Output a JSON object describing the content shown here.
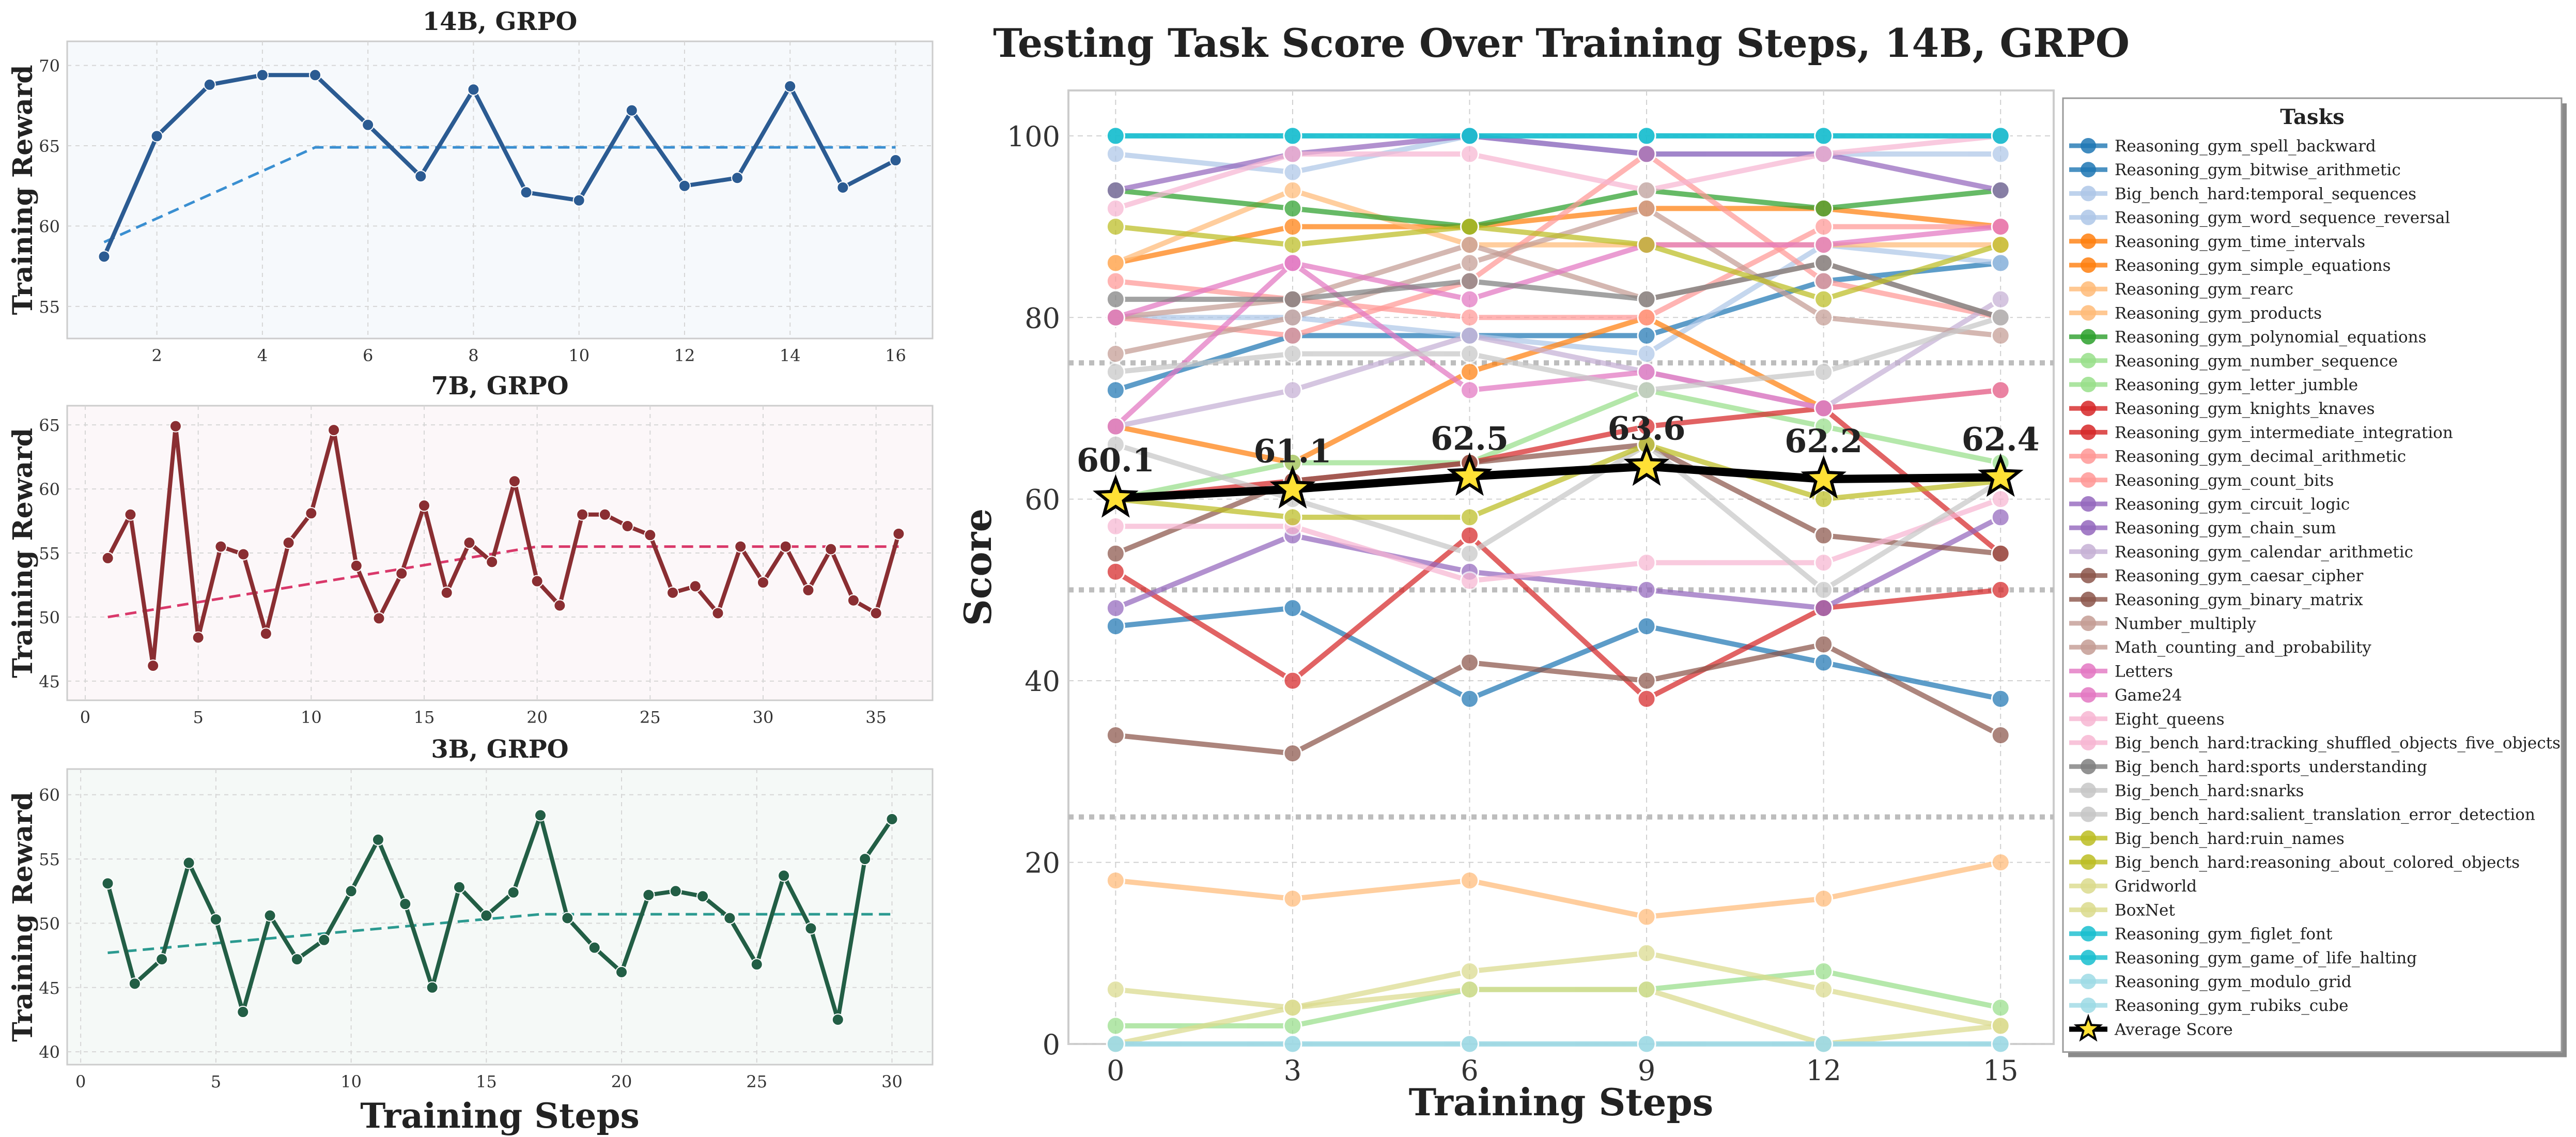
{
  "chart_data": [
    {
      "type": "line",
      "title": "14B, GRPO",
      "xlabel": "",
      "ylabel": "Training Reward",
      "xlim": [
        0.3,
        16.7
      ],
      "ylim": [
        53,
        71.5
      ],
      "xticks": [
        2,
        4,
        6,
        8,
        10,
        12,
        14,
        16
      ],
      "yticks": [
        55,
        60,
        65,
        70
      ],
      "grid": true,
      "x": [
        1,
        2,
        3,
        4,
        5,
        6,
        7,
        8,
        9,
        10,
        11,
        12,
        13,
        14,
        15,
        16
      ],
      "series": [
        {
          "role": "reward",
          "color": "#2b5b92",
          "values": [
            58.1,
            65.6,
            68.8,
            69.4,
            69.4,
            66.3,
            63.1,
            68.5,
            62.1,
            61.6,
            67.2,
            62.5,
            63.0,
            68.7,
            62.4,
            64.1
          ]
        },
        {
          "role": "trend",
          "color": "#3a8fd1",
          "dashed": true,
          "values": [
            59.0,
            null,
            null,
            null,
            64.9,
            null,
            null,
            null,
            null,
            null,
            null,
            null,
            null,
            null,
            null,
            64.9
          ]
        }
      ]
    },
    {
      "type": "line",
      "title": "7B, GRPO",
      "xlabel": "",
      "ylabel": "Training Reward",
      "xlim": [
        -0.8,
        37.5
      ],
      "ylim": [
        43.5,
        66.5
      ],
      "xticks": [
        0,
        5,
        10,
        15,
        20,
        25,
        30,
        35
      ],
      "yticks": [
        45,
        50,
        55,
        60,
        65
      ],
      "grid": true,
      "x": [
        1,
        2,
        3,
        4,
        5,
        6,
        7,
        8,
        9,
        10,
        11,
        12,
        13,
        14,
        15,
        16,
        17,
        18,
        19,
        20,
        21,
        22,
        23,
        24,
        25,
        26,
        27,
        28,
        29,
        30,
        31,
        32,
        33,
        34,
        35,
        36
      ],
      "series": [
        {
          "role": "reward",
          "color": "#8a2e32",
          "values": [
            54.6,
            58.0,
            46.2,
            64.9,
            48.4,
            55.5,
            54.9,
            48.7,
            55.8,
            58.1,
            64.6,
            54.0,
            49.9,
            53.4,
            58.7,
            51.9,
            55.8,
            54.3,
            60.6,
            52.8,
            50.9,
            58.0,
            58.0,
            57.1,
            56.4,
            51.9,
            52.4,
            50.3,
            55.5,
            52.7,
            55.5,
            52.1,
            55.3,
            51.3,
            50.3,
            56.5
          ]
        },
        {
          "role": "trend",
          "color": "#d9386a",
          "dashed": true,
          "values": [
            50.0,
            null,
            null,
            null,
            null,
            null,
            null,
            null,
            null,
            null,
            null,
            null,
            null,
            null,
            null,
            null,
            null,
            null,
            null,
            55.5,
            null,
            null,
            null,
            null,
            null,
            null,
            null,
            null,
            null,
            null,
            null,
            null,
            null,
            null,
            null,
            55.5
          ]
        }
      ]
    },
    {
      "type": "line",
      "title": "3B, GRPO",
      "xlabel": "Training Steps",
      "ylabel": "Training Reward",
      "xlim": [
        -0.5,
        31.5
      ],
      "ylim": [
        39,
        62
      ],
      "xticks": [
        0,
        5,
        10,
        15,
        20,
        25,
        30
      ],
      "yticks": [
        40,
        45,
        50,
        55,
        60
      ],
      "grid": true,
      "x": [
        1,
        2,
        3,
        4,
        5,
        6,
        7,
        8,
        9,
        10,
        11,
        12,
        13,
        14,
        15,
        16,
        17,
        18,
        19,
        20,
        21,
        22,
        23,
        24,
        25,
        26,
        27,
        28,
        29,
        30
      ],
      "series": [
        {
          "role": "reward",
          "color": "#225e45",
          "values": [
            53.1,
            45.3,
            47.2,
            54.7,
            50.3,
            43.1,
            50.6,
            47.2,
            48.7,
            52.5,
            56.5,
            51.5,
            45.0,
            52.8,
            50.6,
            52.4,
            58.4,
            50.4,
            48.1,
            46.2,
            52.2,
            52.5,
            52.1,
            50.4,
            46.8,
            53.7,
            49.6,
            42.5,
            55.0,
            58.1
          ]
        },
        {
          "role": "trend",
          "color": "#2b9a90",
          "dashed": true,
          "values": [
            47.7,
            null,
            null,
            null,
            null,
            null,
            null,
            null,
            null,
            null,
            null,
            null,
            null,
            null,
            null,
            null,
            50.7,
            null,
            null,
            null,
            null,
            null,
            null,
            null,
            null,
            null,
            null,
            null,
            null,
            50.7
          ]
        }
      ]
    },
    {
      "type": "line",
      "title": "Testing Task Score Over Training Steps, 14B, GRPO",
      "xlabel": "Training Steps",
      "ylabel": "Score",
      "xlim": [
        -0.8,
        15.9
      ],
      "ylim": [
        0,
        105
      ],
      "xticks": [
        0,
        3,
        6,
        9,
        12,
        15
      ],
      "yticks": [
        0,
        20,
        40,
        60,
        80,
        100
      ],
      "reference_lines": [
        25,
        50,
        75
      ],
      "grid": true,
      "legend_title": "Tasks",
      "legend_position": "right",
      "x": [
        0,
        3,
        6,
        9,
        12,
        15
      ],
      "series": [
        {
          "name": "Reasoning_gym_spell_backward",
          "color": "#1f77b4",
          "values": [
            46,
            48,
            38,
            46,
            42,
            38
          ]
        },
        {
          "name": "Reasoning_gym_bitwise_arithmetic",
          "color": "#1f77b4",
          "values": [
            72,
            78,
            78,
            78,
            84,
            86
          ]
        },
        {
          "name": "Big_bench_hard:temporal_sequences",
          "color": "#aec7e8",
          "values": [
            98,
            96,
            100,
            98,
            98,
            98
          ]
        },
        {
          "name": "Reasoning_gym_word_sequence_reversal",
          "color": "#aec7e8",
          "values": [
            80,
            80,
            78,
            76,
            88,
            86
          ]
        },
        {
          "name": "Reasoning_gym_time_intervals",
          "color": "#ff7f0e",
          "values": [
            68,
            64,
            74,
            80,
            70,
            72
          ]
        },
        {
          "name": "Reasoning_gym_simple_equations",
          "color": "#ff7f0e",
          "values": [
            86,
            90,
            90,
            92,
            92,
            90
          ]
        },
        {
          "name": "Reasoning_gym_rearc",
          "color": "#ffbb78",
          "values": [
            18,
            16,
            18,
            14,
            16,
            20
          ]
        },
        {
          "name": "Reasoning_gym_products",
          "color": "#ffbb78",
          "values": [
            86,
            94,
            88,
            88,
            88,
            88
          ]
        },
        {
          "name": "Reasoning_gym_polynomial_equations",
          "color": "#2ca02c",
          "values": [
            94,
            92,
            90,
            94,
            92,
            94
          ]
        },
        {
          "name": "Reasoning_gym_number_sequence",
          "color": "#98df8a",
          "values": [
            2,
            2,
            6,
            6,
            8,
            4
          ]
        },
        {
          "name": "Reasoning_gym_letter_jumble",
          "color": "#98df8a",
          "values": [
            60,
            64,
            64,
            72,
            68,
            64
          ]
        },
        {
          "name": "Reasoning_gym_knights_knaves",
          "color": "#d62728",
          "values": [
            52,
            40,
            56,
            38,
            48,
            50
          ]
        },
        {
          "name": "Reasoning_gym_intermediate_integration",
          "color": "#d62728",
          "values": [
            60,
            62,
            64,
            68,
            70,
            54
          ]
        },
        {
          "name": "Reasoning_gym_decimal_arithmetic",
          "color": "#ff9896",
          "values": [
            84,
            82,
            80,
            80,
            90,
            90
          ]
        },
        {
          "name": "Reasoning_gym_count_bits",
          "color": "#ff9896",
          "values": [
            80,
            78,
            84,
            98,
            84,
            80
          ]
        },
        {
          "name": "Reasoning_gym_circuit_logic",
          "color": "#9467bd",
          "values": [
            94,
            98,
            100,
            98,
            98,
            94
          ]
        },
        {
          "name": "Reasoning_gym_chain_sum",
          "color": "#9467bd",
          "values": [
            48,
            56,
            52,
            50,
            48,
            58
          ]
        },
        {
          "name": "Reasoning_gym_calendar_arithmetic",
          "color": "#c5b0d5",
          "values": [
            68,
            72,
            78,
            74,
            70,
            82
          ]
        },
        {
          "name": "Reasoning_gym_caesar_cipher",
          "color": "#8c564b",
          "values": [
            54,
            62,
            64,
            66,
            56,
            54
          ]
        },
        {
          "name": "Reasoning_gym_binary_matrix",
          "color": "#8c564b",
          "values": [
            34,
            32,
            42,
            40,
            44,
            34
          ]
        },
        {
          "name": "Number_multiply",
          "color": "#c49c94",
          "values": [
            76,
            80,
            86,
            92,
            80,
            78
          ]
        },
        {
          "name": "Math_counting_and_probability",
          "color": "#c49c94",
          "values": [
            80,
            82,
            88,
            82,
            86,
            80
          ]
        },
        {
          "name": "Letters",
          "color": "#e377c2",
          "values": [
            68,
            86,
            72,
            74,
            70,
            72
          ]
        },
        {
          "name": "Game24",
          "color": "#e377c2",
          "values": [
            80,
            86,
            82,
            88,
            88,
            90
          ]
        },
        {
          "name": "Eight_queens",
          "color": "#f7b6d2",
          "values": [
            57,
            57,
            51,
            53,
            53,
            60
          ]
        },
        {
          "name": "Big_bench_hard:tracking_shuffled_objects_five_objects",
          "color": "#f7b6d2",
          "values": [
            92,
            98,
            98,
            94,
            98,
            100
          ]
        },
        {
          "name": "Big_bench_hard:sports_understanding",
          "color": "#7f7f7f",
          "values": [
            82,
            82,
            84,
            82,
            86,
            80
          ]
        },
        {
          "name": "Big_bench_hard:snarks",
          "color": "#c7c7c7",
          "values": [
            66,
            60,
            54,
            66,
            50,
            62
          ]
        },
        {
          "name": "Big_bench_hard:salient_translation_error_detection",
          "color": "#c7c7c7",
          "values": [
            74,
            76,
            76,
            72,
            74,
            80
          ]
        },
        {
          "name": "Big_bench_hard:ruin_names",
          "color": "#bcbd22",
          "values": [
            90,
            88,
            90,
            88,
            82,
            88
          ]
        },
        {
          "name": "Big_bench_hard:reasoning_about_colored_objects",
          "color": "#bcbd22",
          "values": [
            60,
            58,
            58,
            66,
            60,
            62
          ]
        },
        {
          "name": "Gridworld",
          "color": "#dbdb8d",
          "values": [
            6,
            4,
            8,
            10,
            6,
            2
          ]
        },
        {
          "name": "BoxNet",
          "color": "#dbdb8d",
          "values": [
            0,
            4,
            6,
            6,
            0,
            2
          ]
        },
        {
          "name": "Reasoning_gym_figlet_font",
          "color": "#17becf",
          "values": [
            100,
            100,
            100,
            100,
            100,
            100
          ]
        },
        {
          "name": "Reasoning_gym_game_of_life_halting",
          "color": "#17becf",
          "values": [
            100,
            100,
            100,
            100,
            100,
            100
          ]
        },
        {
          "name": "Reasoning_gym_modulo_grid",
          "color": "#9edae5",
          "values": [
            0,
            0,
            0,
            0,
            0,
            0
          ]
        },
        {
          "name": "Reasoning_gym_rubiks_cube",
          "color": "#9edae5",
          "values": [
            0,
            0,
            0,
            0,
            0,
            0
          ]
        },
        {
          "name": "Average Score",
          "color": "#000000",
          "marker_color": "#ffe135",
          "values": [
            60.1,
            61.1,
            62.5,
            63.6,
            62.2,
            62.4
          ]
        }
      ],
      "data_labels": [
        "60.1",
        "61.1",
        "62.5",
        "63.6",
        "62.2",
        "62.4"
      ]
    }
  ]
}
